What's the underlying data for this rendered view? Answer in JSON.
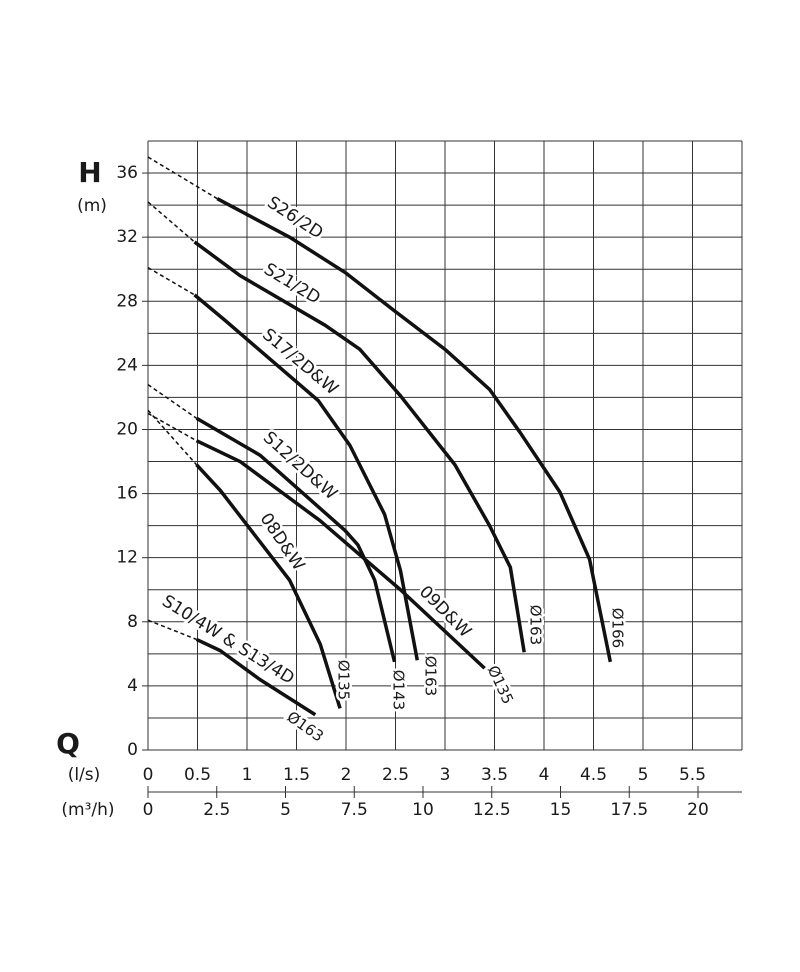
{
  "chart_data": {
    "type": "line",
    "y_label": "H",
    "y_unit": "(m)",
    "x_label": "Q",
    "x_unit": "(l/s)",
    "x2_unit": "(m³/h)",
    "xlim": [
      0,
      6
    ],
    "xticks": [
      0,
      0.5,
      1,
      1.5,
      2,
      2.5,
      3,
      3.5,
      4,
      4.5,
      5,
      5.5
    ],
    "x2lim": [
      0,
      21.6
    ],
    "x2ticks": [
      0,
      2.5,
      5,
      7.5,
      10,
      12.5,
      15,
      17.5,
      20
    ],
    "ylim": [
      0,
      38
    ],
    "yticks": [
      0,
      4,
      8,
      12,
      16,
      20,
      24,
      28,
      32,
      36
    ],
    "xgrid": [
      0,
      0.5,
      1,
      1.5,
      2,
      2.5,
      3,
      3.5,
      4,
      4.5,
      5,
      5.5,
      6
    ],
    "ygrid": [
      0,
      2,
      4,
      6,
      8,
      10,
      12,
      14,
      16,
      18,
      20,
      22,
      24,
      26,
      28,
      30,
      32,
      34,
      36,
      38
    ],
    "color": "#111111",
    "dashed_first_segment": true,
    "series": [
      {
        "name": "S26/2D",
        "end_label": "Ø166",
        "x": [
          0,
          0.7,
          1.43,
          1.99,
          2.49,
          3.0,
          3.45,
          3.76,
          4.16,
          4.46,
          4.67
        ],
        "values": [
          37.0,
          34.4,
          32.0,
          29.8,
          27.4,
          25.0,
          22.5,
          19.8,
          16.1,
          11.9,
          5.5
        ]
      },
      {
        "name": "S21/2D",
        "end_label": "Ø163",
        "x": [
          0,
          0.47,
          0.93,
          1.79,
          2.14,
          2.55,
          3.1,
          3.45,
          3.66,
          3.8
        ],
        "values": [
          34.2,
          31.7,
          29.6,
          26.5,
          25.0,
          22.1,
          17.8,
          14.0,
          11.4,
          6.1
        ]
      },
      {
        "name": "S17/2D&W",
        "end_label": "Ø163",
        "x": [
          0,
          0.47,
          0.78,
          1.72,
          2.04,
          2.39,
          2.55,
          2.72
        ],
        "values": [
          30.1,
          28.4,
          26.8,
          21.8,
          19.0,
          14.7,
          11.2,
          5.6
        ]
      },
      {
        "name": "S12/2D&W",
        "end_label": "Ø143",
        "x": [
          0,
          0.49,
          1.13,
          1.99,
          2.12,
          2.29,
          2.49
        ],
        "values": [
          22.8,
          20.7,
          18.4,
          13.7,
          12.8,
          10.6,
          5.5
        ]
      },
      {
        "name": "08D&W",
        "end_label": "Ø135",
        "x": [
          0,
          0.49,
          0.73,
          1.43,
          1.74,
          1.94
        ],
        "values": [
          21.2,
          17.8,
          16.2,
          10.6,
          6.6,
          2.6
        ]
      },
      {
        "name": "09D&W",
        "end_label": "Ø135",
        "x": [
          0,
          0.49,
          0.93,
          1.74,
          2.55,
          3.4
        ],
        "values": [
          21.0,
          19.3,
          18.0,
          14.3,
          10.0,
          5.1
        ]
      },
      {
        "name": "S10/4W & S13/4D",
        "end_label": "Ø163",
        "x": [
          0,
          0.49,
          0.73,
          1.13,
          1.69
        ],
        "values": [
          8.1,
          6.9,
          6.2,
          4.4,
          2.2
        ]
      }
    ]
  }
}
